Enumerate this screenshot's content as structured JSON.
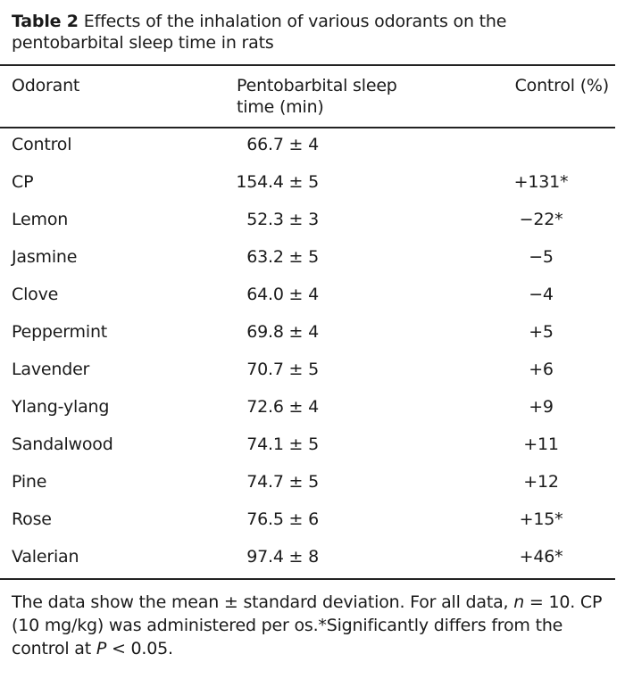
{
  "caption": {
    "label": "Table 2",
    "text": "Effects of the inhalation of various odorants on the pentobarbital sleep time in rats"
  },
  "headers": {
    "col1": "Odorant",
    "col2_line1": "Pentobarbital sleep",
    "col2_line2": "time (min)",
    "col3": "Control (%)"
  },
  "rows": [
    {
      "odorant": "Control",
      "sleep": "66.7 ± 4",
      "control": ""
    },
    {
      "odorant": "CP",
      "sleep": "154.4 ± 5",
      "control": "+131*"
    },
    {
      "odorant": "Lemon",
      "sleep": "52.3 ± 3",
      "control": "−22*"
    },
    {
      "odorant": "Jasmine",
      "sleep": "63.2 ± 5",
      "control": "−5"
    },
    {
      "odorant": "Clove",
      "sleep": "64.0 ± 4",
      "control": "−4"
    },
    {
      "odorant": "Peppermint",
      "sleep": "69.8 ± 4",
      "control": "+5"
    },
    {
      "odorant": "Lavender",
      "sleep": "70.7 ± 5",
      "control": "+6"
    },
    {
      "odorant": "Ylang-ylang",
      "sleep": "72.6 ± 4",
      "control": "+9"
    },
    {
      "odorant": "Sandalwood",
      "sleep": "74.1 ± 5",
      "control": "+11"
    },
    {
      "odorant": "Pine",
      "sleep": "74.7 ± 5",
      "control": "+12"
    },
    {
      "odorant": "Rose",
      "sleep": "76.5 ± 6",
      "control": "+15*"
    },
    {
      "odorant": "Valerian",
      "sleep": "97.4 ± 8",
      "control": "+46*"
    }
  ],
  "footnote": {
    "part1": "The data show the mean ± standard deviation. For all data, ",
    "n_symbol": "n",
    "part2": " = 10. CP (10 mg/kg) was administered per os.*Significantly differs from the control at ",
    "p_symbol": "P",
    "part3": " < 0.05."
  }
}
